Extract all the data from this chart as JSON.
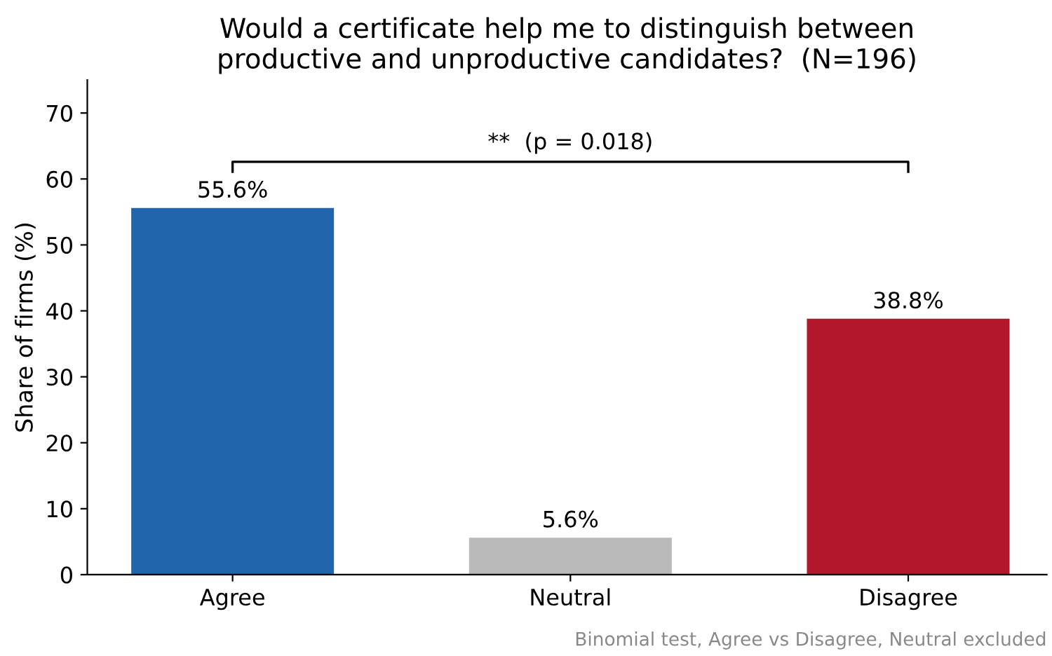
{
  "chart_data": {
    "type": "bar",
    "title": "Would a certificate help me to distinguish between\nproductive and unproductive candidates?  (N=196)",
    "ylabel": "Share of firms (%)",
    "categories": [
      "Agree",
      "Neutral",
      "Disagree"
    ],
    "values": [
      55.6,
      5.6,
      38.8
    ],
    "colors": [
      "#2166ac",
      "#bababa",
      "#b2182b"
    ],
    "value_labels": [
      "55.6%",
      "5.6%",
      "38.8%"
    ],
    "ylim": [
      0,
      75
    ],
    "yticks": [
      0,
      10,
      20,
      30,
      40,
      50,
      60,
      70
    ],
    "grid": false,
    "legend": false,
    "annotations": [
      "**  (p = 0.018)",
      "Binomial test, Agree vs Disagree, Neutral excluded"
    ]
  }
}
